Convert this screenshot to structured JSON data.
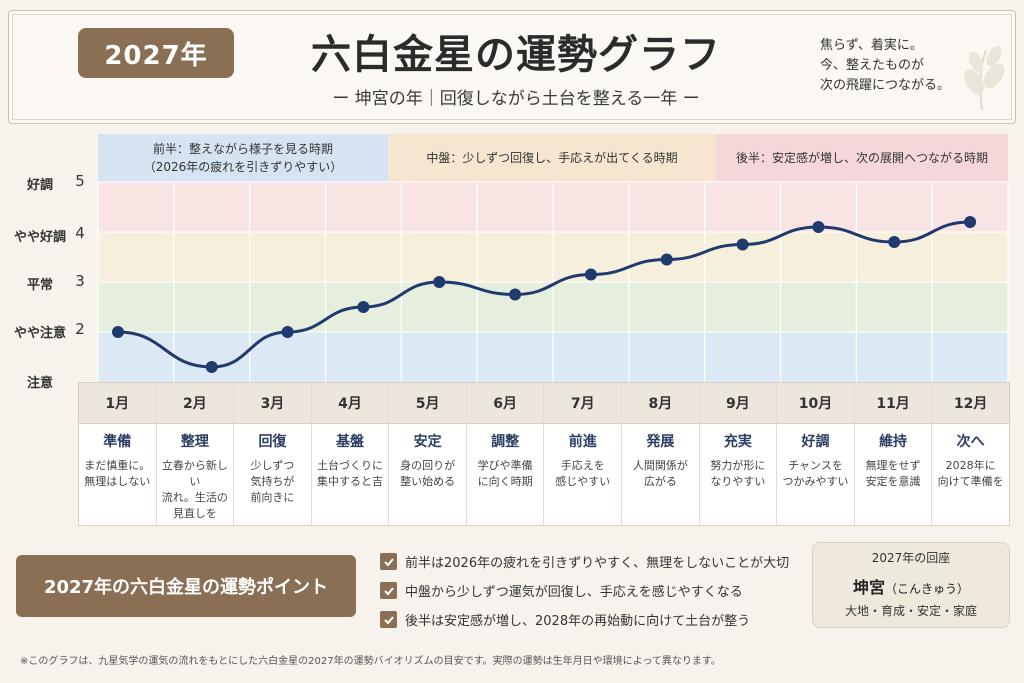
{
  "header": {
    "year_badge": "2027年",
    "title": "六白金星の運勢グラフ",
    "subtitle": "ー 坤宮の年｜回復しながら土台を整える一年 ー",
    "motto_lines": [
      "焦らず、着実に。",
      "今、整えたものが",
      "次の飛躍につながる。"
    ]
  },
  "phases": [
    {
      "line1": "前半：整えながら様子を見る時期",
      "line2": "（2026年の疲れを引きずりやすい）"
    },
    {
      "line1": "中盤：少しずつ回復し、手応えが出てくる時期",
      "line2": ""
    },
    {
      "line1": "後半：安定感が増し、次の展開へつながる時期",
      "line2": ""
    }
  ],
  "y_axis": {
    "levels": [
      {
        "name": "好調",
        "num": "5"
      },
      {
        "name": "やや好調",
        "num": "4"
      },
      {
        "name": "平常",
        "num": "3"
      },
      {
        "name": "やや注意",
        "num": "2"
      },
      {
        "name": "注意",
        "num": ""
      }
    ]
  },
  "chart_data": {
    "type": "line",
    "x": [
      "1月",
      "2月",
      "3月",
      "4月",
      "5月",
      "6月",
      "7月",
      "8月",
      "9月",
      "10月",
      "11月",
      "12月"
    ],
    "series": [
      {
        "values": [
          2.0,
          1.3,
          2.0,
          2.5,
          3.0,
          2.75,
          3.15,
          3.45,
          3.75,
          4.1,
          3.8,
          4.2
        ]
      }
    ],
    "ylim": [
      1.0,
      5.0
    ],
    "bands": [
      {
        "from": 4.0,
        "to": 5.0,
        "color": "#f9e4e4"
      },
      {
        "from": 3.0,
        "to": 4.0,
        "color": "#f5efdc"
      },
      {
        "from": 2.0,
        "to": 3.0,
        "color": "#e6efdd"
      },
      {
        "from": 1.0,
        "to": 2.0,
        "color": "#dce8f3"
      }
    ],
    "line_color": "#1f3a6e"
  },
  "months": [
    {
      "label": "1月",
      "keyword": "準備",
      "desc": "まだ慎重に。\n無理はしない"
    },
    {
      "label": "2月",
      "keyword": "整理",
      "desc": "立春から新しい\n流れ。生活の\n見直しを"
    },
    {
      "label": "3月",
      "keyword": "回復",
      "desc": "少しずつ\n気持ちが\n前向きに"
    },
    {
      "label": "4月",
      "keyword": "基盤",
      "desc": "土台づくりに\n集中すると吉"
    },
    {
      "label": "5月",
      "keyword": "安定",
      "desc": "身の回りが\n整い始める"
    },
    {
      "label": "6月",
      "keyword": "調整",
      "desc": "学びや準備\nに向く時期"
    },
    {
      "label": "7月",
      "keyword": "前進",
      "desc": "手応えを\n感じやすい"
    },
    {
      "label": "8月",
      "keyword": "発展",
      "desc": "人間関係が\n広がる"
    },
    {
      "label": "9月",
      "keyword": "充実",
      "desc": "努力が形に\nなりやすい"
    },
    {
      "label": "10月",
      "keyword": "好調",
      "desc": "チャンスを\nつかみやすい"
    },
    {
      "label": "11月",
      "keyword": "維持",
      "desc": "無理をせず\n安定を意識"
    },
    {
      "label": "12月",
      "keyword": "次へ",
      "desc": "2028年に\n向けて準備を"
    }
  ],
  "points_banner": "2027年の六白金星の運勢ポイント",
  "points": [
    "前半は2026年の疲れを引きずりやすく、無理をしないことが大切",
    "中盤から少しずつ運気が回復し、手応えを感じやすくなる",
    "後半は安定感が増し、2028年の再始動に向けて土台が整う"
  ],
  "palace": {
    "title": "2027年の回座",
    "name": "坤宮",
    "reading": "（こんきゅう）",
    "words": "大地・育成・安定・家庭"
  },
  "footnote": "※このグラフは、九星気学の運気の流れをもとにした六白金星の2027年の運勢バイオリズムの目安です。実際の運勢は生年月日や環境によって異なります。"
}
